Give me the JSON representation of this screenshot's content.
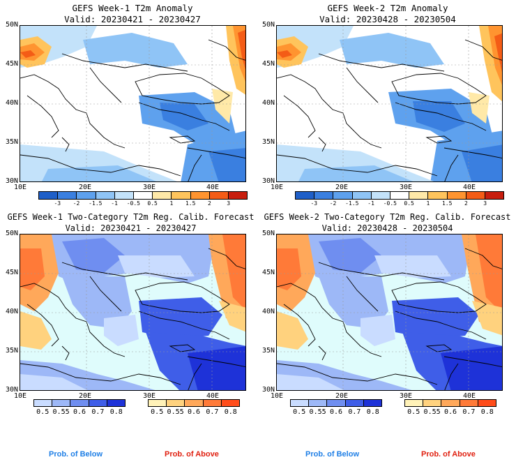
{
  "panels": [
    {
      "title": "GEFS Week-1 T2m Anomaly",
      "valid": "Valid: 20230421 - 20230427"
    },
    {
      "title": "GEFS Week-2 T2m Anomaly",
      "valid": "Valid: 20230428 - 20230504"
    },
    {
      "title": "GEFS Week-1 Two-Category T2m Reg. Calib. Forecast",
      "valid": "Valid: 20230421 - 20230427"
    },
    {
      "title": "GEFS Week-2 Two-Category T2m Reg. Calib. Forecast",
      "valid": "Valid: 20230428 - 20230504"
    }
  ],
  "lat_labels": [
    "50N",
    "45N",
    "40N",
    "35N",
    "30N"
  ],
  "lon_labels": [
    "10E",
    "20E",
    "30E",
    "40E"
  ],
  "anomaly_colorbar": {
    "ticks": [
      "-3",
      "-2",
      "-1.5",
      "-1",
      "-0.5",
      "0.5",
      "1",
      "1.5",
      "2",
      "3"
    ],
    "colors": [
      "#1f5fc8",
      "#3a7fe0",
      "#5ea1ee",
      "#8fc4f6",
      "#c3e2fa",
      "#ffffff",
      "#ffe9a8",
      "#ffc45c",
      "#ff9430",
      "#f45c16",
      "#c81e0e"
    ]
  },
  "below_colorbar": {
    "ticks": [
      "0.5",
      "0.55",
      "0.6",
      "0.7",
      "0.8"
    ],
    "colors": [
      "#c9dcff",
      "#9db8f7",
      "#6f8ef0",
      "#3f5ee8",
      "#1e32d8"
    ]
  },
  "above_colorbar": {
    "ticks": [
      "0.5",
      "0.55",
      "0.6",
      "0.7",
      "0.8"
    ],
    "colors": [
      "#fff2b8",
      "#ffd27e",
      "#ffa85a",
      "#ff7a38",
      "#ff4c1a"
    ]
  },
  "legend": {
    "below": "Prob. of Below",
    "above": "Prob. of Above",
    "below_color": "#1f7fe6",
    "above_color": "#e02010"
  }
}
